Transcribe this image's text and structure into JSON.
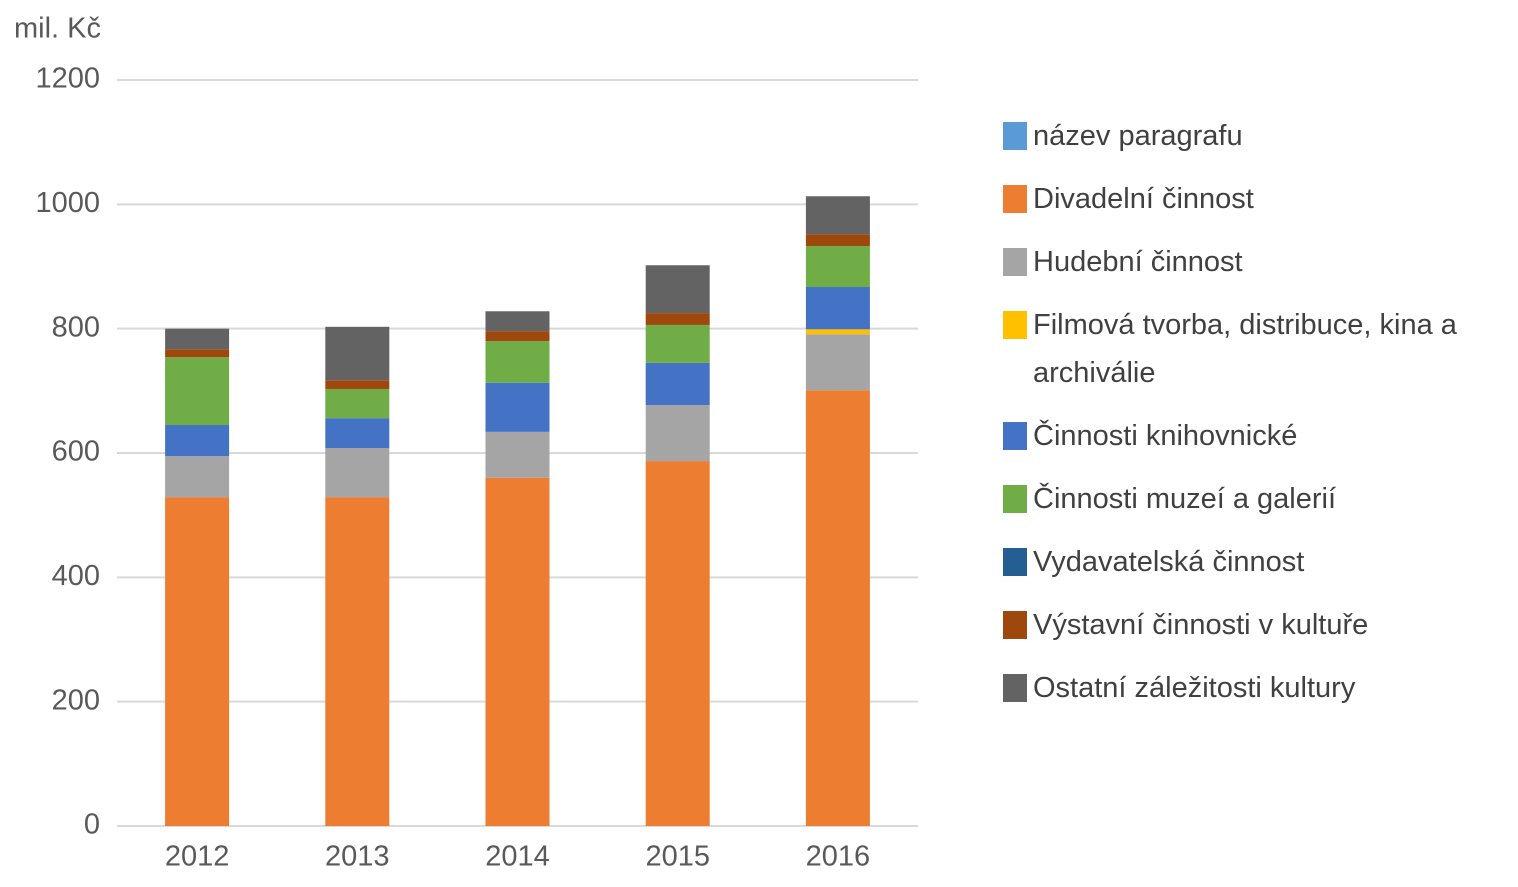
{
  "chart_data": {
    "type": "stacked_bar",
    "y_label": "mil. Kč",
    "categories": [
      "2012",
      "2013",
      "2014",
      "2015",
      "2016"
    ],
    "series": [
      {
        "name": "název paragrafu",
        "color": "#5b9bd5",
        "values": [
          0,
          0,
          0,
          0,
          0
        ]
      },
      {
        "name": "Divadelní činnost",
        "color": "#ed7d31",
        "values": [
          529,
          529,
          560,
          587,
          701
        ]
      },
      {
        "name": "Hudební činnost",
        "color": "#a5a5a5",
        "values": [
          66,
          79,
          74,
          90,
          90
        ]
      },
      {
        "name": "Filmová tvorba, distribuce, kina a archiválie",
        "color": "#ffc000",
        "values": [
          0,
          0,
          0,
          0,
          8
        ]
      },
      {
        "name": "Činnosti knihovnické",
        "color": "#4472c4",
        "values": [
          50,
          48,
          79,
          68,
          68
        ]
      },
      {
        "name": "Činnosti muzeí a galerií",
        "color": "#70ad47",
        "values": [
          109,
          47,
          67,
          61,
          66
        ]
      },
      {
        "name": "Vydavatelská činnost",
        "color": "#255e91",
        "values": [
          0,
          0,
          0,
          0,
          0
        ]
      },
      {
        "name": "Výstavní činnosti v kultuře",
        "color": "#9e480e",
        "values": [
          13,
          14,
          16,
          19,
          19
        ]
      },
      {
        "name": "Ostatní záležitosti kultury",
        "color": "#636363",
        "values": [
          33,
          86,
          32,
          77,
          61
        ]
      }
    ],
    "ylim": [
      0,
      1200
    ],
    "yticks": [
      0,
      200,
      400,
      600,
      800,
      1000,
      1200
    ],
    "grid": true
  }
}
